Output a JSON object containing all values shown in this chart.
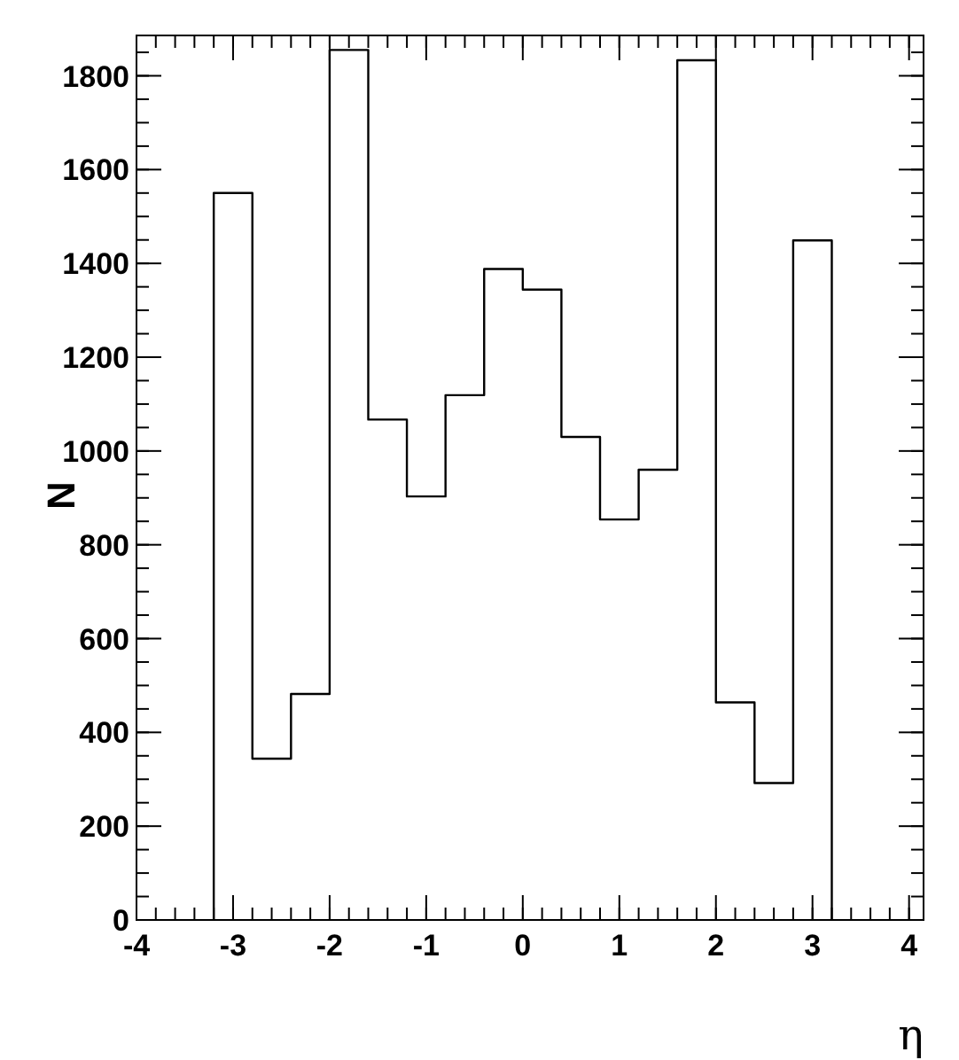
{
  "chart_data": {
    "type": "histogram",
    "xlabel": "η",
    "ylabel": "N",
    "bins": [
      -3.2,
      -2.8,
      -2.4,
      -2.0,
      -1.6,
      -1.2,
      -0.8,
      -0.4,
      0,
      0.4,
      0.8,
      1.2,
      1.6,
      2.0,
      2.4,
      2.8,
      3.2
    ],
    "values": [
      1550,
      344,
      482,
      1855,
      1067,
      903,
      1119,
      1388,
      1344,
      1030,
      854,
      960,
      1833,
      464,
      292,
      1449
    ],
    "color": "#000000",
    "xlim": [
      -4,
      4.15
    ],
    "xticks": [
      -4,
      -3,
      -2,
      -1,
      0,
      1,
      2,
      3,
      4
    ],
    "ylim": [
      0,
      1886
    ],
    "yticks": [
      0,
      200,
      400,
      600,
      800,
      1000,
      1200,
      1400,
      1600,
      1800
    ],
    "grid": false
  }
}
